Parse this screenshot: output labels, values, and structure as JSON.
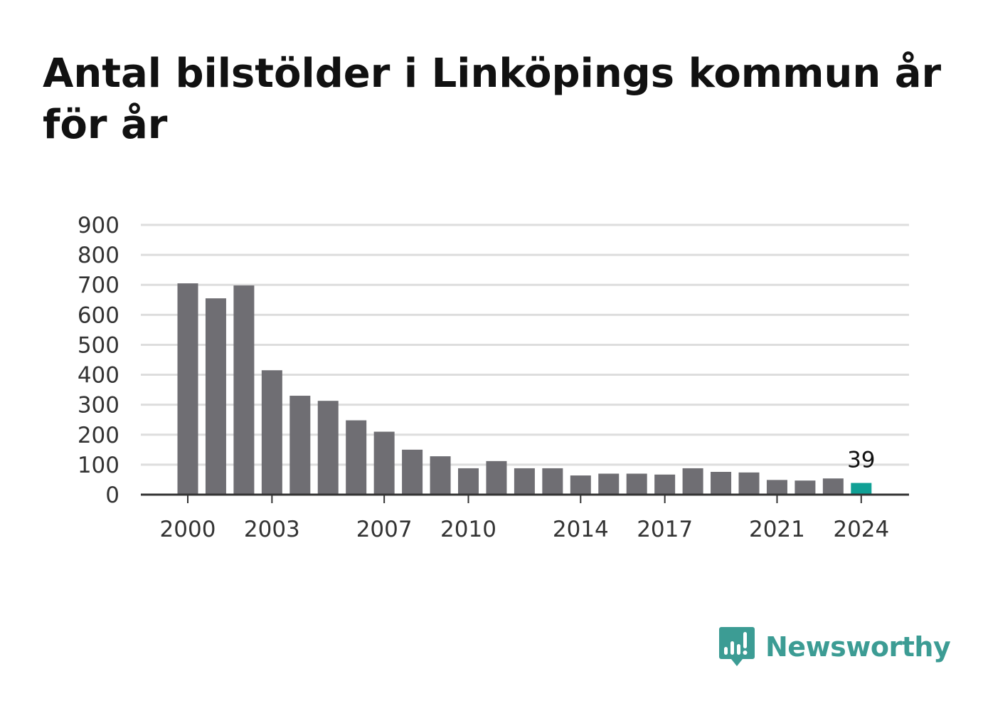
{
  "title": "Antal bilstölder i Linköpings kommun år för år",
  "brand": {
    "name": "Newsworthy",
    "color": "#3c9c94"
  },
  "colors": {
    "bar": "#6f6e73",
    "highlight": "#10a095",
    "grid": "#dddddd",
    "axis": "#333333"
  },
  "chart_data": {
    "type": "bar",
    "title": "Antal bilstölder i Linköpings kommun år för år",
    "xlabel": "",
    "ylabel": "",
    "ylim": [
      0,
      900
    ],
    "y_ticks": [
      0,
      100,
      200,
      300,
      400,
      500,
      600,
      700,
      800,
      900
    ],
    "x_tick_labels": [
      "2000",
      "2003",
      "2007",
      "2010",
      "2014",
      "2017",
      "2021",
      "2024"
    ],
    "categories": [
      "2000",
      "2001",
      "2002",
      "2003",
      "2004",
      "2005",
      "2006",
      "2007",
      "2008",
      "2009",
      "2010",
      "2011",
      "2012",
      "2013",
      "2014",
      "2015",
      "2016",
      "2017",
      "2018",
      "2019",
      "2020",
      "2021",
      "2022",
      "2023",
      "2024"
    ],
    "values": [
      705,
      655,
      698,
      415,
      330,
      313,
      248,
      210,
      150,
      128,
      88,
      112,
      88,
      88,
      64,
      70,
      70,
      67,
      88,
      76,
      74,
      49,
      47,
      54,
      39
    ],
    "highlight_index": 24,
    "highlight_label": "39",
    "grid": true
  }
}
